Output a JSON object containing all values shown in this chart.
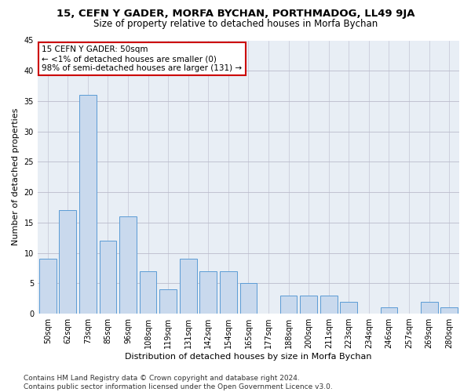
{
  "title": "15, CEFN Y GADER, MORFA BYCHAN, PORTHMADOG, LL49 9JA",
  "subtitle": "Size of property relative to detached houses in Morfa Bychan",
  "xlabel": "Distribution of detached houses by size in Morfa Bychan",
  "ylabel": "Number of detached properties",
  "categories": [
    "50sqm",
    "62sqm",
    "73sqm",
    "85sqm",
    "96sqm",
    "108sqm",
    "119sqm",
    "131sqm",
    "142sqm",
    "154sqm",
    "165sqm",
    "177sqm",
    "188sqm",
    "200sqm",
    "211sqm",
    "223sqm",
    "234sqm",
    "246sqm",
    "257sqm",
    "269sqm",
    "280sqm"
  ],
  "values": [
    9,
    17,
    36,
    12,
    16,
    7,
    4,
    9,
    7,
    7,
    5,
    0,
    3,
    3,
    3,
    2,
    0,
    1,
    0,
    2,
    1
  ],
  "bar_color": "#c9d9ed",
  "bar_edge_color": "#5b9bd5",
  "background_color": "#ffffff",
  "plot_bg_color": "#e8eef5",
  "grid_color": "#bbbbcc",
  "annotation_line1": "15 CEFN Y GADER: 50sqm",
  "annotation_line2": "← <1% of detached houses are smaller (0)",
  "annotation_line3": "98% of semi-detached houses are larger (131) →",
  "annotation_box_color": "#ffffff",
  "annotation_box_edge": "#cc0000",
  "ylim": [
    0,
    45
  ],
  "yticks": [
    0,
    5,
    10,
    15,
    20,
    25,
    30,
    35,
    40,
    45
  ],
  "footer": "Contains HM Land Registry data © Crown copyright and database right 2024.\nContains public sector information licensed under the Open Government Licence v3.0.",
  "title_fontsize": 9.5,
  "subtitle_fontsize": 8.5,
  "ylabel_fontsize": 8,
  "xlabel_fontsize": 8,
  "tick_fontsize": 7,
  "annotation_fontsize": 7.5,
  "footer_fontsize": 6.5
}
